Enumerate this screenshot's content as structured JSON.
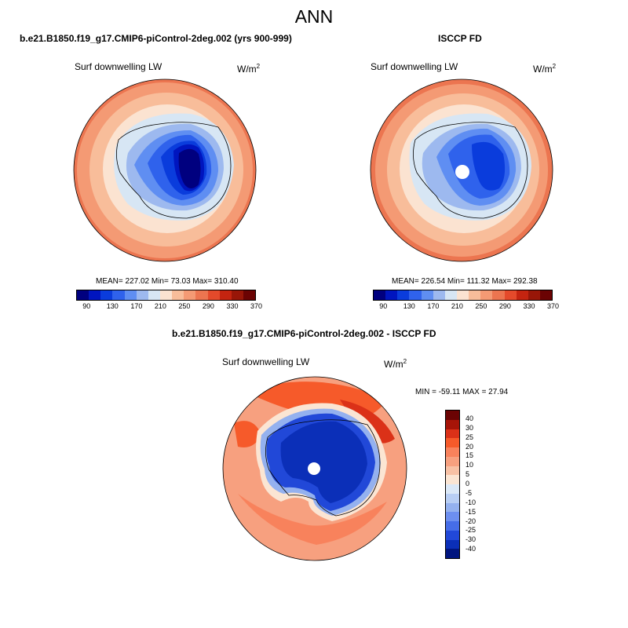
{
  "title": "ANN",
  "panels": [
    {
      "id": "model",
      "title": "b.e21.B1850.f19_g17.CMIP6-piControl-2deg.002 (yrs 900-999)",
      "variable": "Surf downwelling LW",
      "units_base": "W/m",
      "units_exp": "2",
      "stats": "MEAN= 227.02  Min=  73.03  Max= 310.40"
    },
    {
      "id": "obs",
      "title": "ISCCP FD",
      "variable": "Surf downwelling LW",
      "units_base": "W/m",
      "units_exp": "2",
      "stats": "MEAN= 226.54  Min= 111.32  Max= 292.38"
    },
    {
      "id": "diff",
      "title": "b.e21.B1850.f19_g17.CMIP6-piControl-2deg.002 - ISCCP FD",
      "variable": "Surf downwelling LW",
      "units_base": "W/m",
      "units_exp": "2",
      "stats": "MIN = -59.11 MAX =  27.94"
    }
  ],
  "colorbar_abs": {
    "colors": [
      "#00007f",
      "#0015bf",
      "#0a3cdc",
      "#2f62ec",
      "#5f8ef2",
      "#9db9ef",
      "#d7e6f4",
      "#fbe3d1",
      "#f8bd9a",
      "#f49a74",
      "#ec7550",
      "#e44a2b",
      "#c42410",
      "#981608",
      "#6b0303"
    ],
    "labels": [
      "90",
      "130",
      "170",
      "210",
      "250",
      "290",
      "330",
      "370"
    ]
  },
  "colorbar_diff": {
    "colors": [
      "#6b0303",
      "#a71408",
      "#db3118",
      "#f65a2a",
      "#f8825c",
      "#f7a07f",
      "#f8c1a5",
      "#fbe5d3",
      "#dbe8f7",
      "#b8cef4",
      "#94b1ef",
      "#6d8ff0",
      "#466de8",
      "#2148d8",
      "#0b2fb8",
      "#00157f"
    ],
    "labels": [
      "40",
      "30",
      "25",
      "20",
      "15",
      "10",
      "5",
      "0",
      "-5",
      "-10",
      "-15",
      "-20",
      "-25",
      "-30",
      "-40"
    ]
  }
}
